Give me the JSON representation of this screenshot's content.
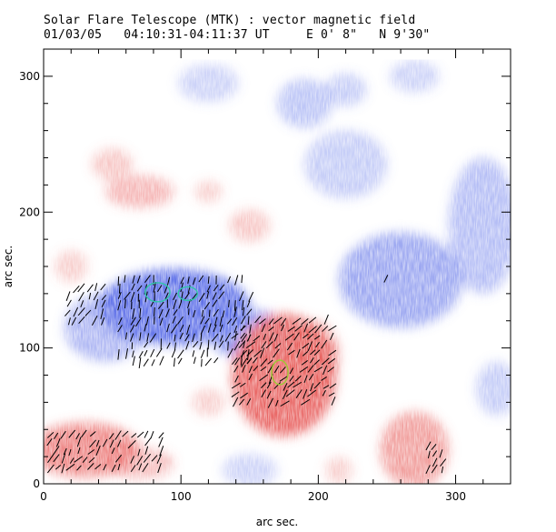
{
  "chart_data": {
    "type": "heatmap",
    "title": "Solar Flare Telescope (MTK) : vector magnetic field",
    "subtitle": "01/03/05   04:10:31-04:11:37 UT     E 0' 8\"   N 9'30\"",
    "xlabel": "arc sec.",
    "ylabel": "arc sec.",
    "xlim": [
      0,
      340
    ],
    "ylim": [
      0,
      320
    ],
    "xticks": [
      0,
      100,
      200,
      300
    ],
    "yticks": [
      0,
      100,
      200,
      300
    ],
    "legend": "none",
    "colors": {
      "positive_polarity": "#e8605e",
      "negative_polarity": "#5b6ee8",
      "contour": "#2fc6a8",
      "contour_alt": "#9acd32",
      "vectors": "#000000",
      "background": "#ffffff"
    },
    "regions": [
      {
        "polarity": "negative",
        "cx": 95,
        "cy": 130,
        "rx": 55,
        "ry": 28,
        "strength": 0.95
      },
      {
        "polarity": "negative",
        "cx": 150,
        "cy": 110,
        "rx": 30,
        "ry": 18,
        "strength": 0.7
      },
      {
        "polarity": "negative",
        "cx": 45,
        "cy": 115,
        "rx": 30,
        "ry": 25,
        "strength": 0.5
      },
      {
        "polarity": "negative",
        "cx": 260,
        "cy": 150,
        "rx": 45,
        "ry": 35,
        "strength": 0.6
      },
      {
        "polarity": "negative",
        "cx": 320,
        "cy": 190,
        "rx": 25,
        "ry": 50,
        "strength": 0.45
      },
      {
        "polarity": "negative",
        "cx": 220,
        "cy": 235,
        "rx": 30,
        "ry": 25,
        "strength": 0.35
      },
      {
        "polarity": "negative",
        "cx": 190,
        "cy": 280,
        "rx": 20,
        "ry": 18,
        "strength": 0.4
      },
      {
        "polarity": "negative",
        "cx": 220,
        "cy": 290,
        "rx": 15,
        "ry": 12,
        "strength": 0.35
      },
      {
        "polarity": "negative",
        "cx": 120,
        "cy": 295,
        "rx": 22,
        "ry": 14,
        "strength": 0.3
      },
      {
        "polarity": "negative",
        "cx": 270,
        "cy": 300,
        "rx": 18,
        "ry": 12,
        "strength": 0.3
      },
      {
        "polarity": "negative",
        "cx": 330,
        "cy": 70,
        "rx": 15,
        "ry": 20,
        "strength": 0.35
      },
      {
        "polarity": "negative",
        "cx": 150,
        "cy": 10,
        "rx": 20,
        "ry": 12,
        "strength": 0.3
      },
      {
        "polarity": "positive",
        "cx": 175,
        "cy": 80,
        "rx": 38,
        "ry": 45,
        "strength": 0.95
      },
      {
        "polarity": "positive",
        "cx": 195,
        "cy": 95,
        "rx": 20,
        "ry": 25,
        "strength": 0.6
      },
      {
        "polarity": "positive",
        "cx": 30,
        "cy": 25,
        "rx": 40,
        "ry": 20,
        "strength": 0.75
      },
      {
        "polarity": "positive",
        "cx": 70,
        "cy": 15,
        "rx": 25,
        "ry": 12,
        "strength": 0.4
      },
      {
        "polarity": "positive",
        "cx": 270,
        "cy": 25,
        "rx": 25,
        "ry": 28,
        "strength": 0.6
      },
      {
        "polarity": "positive",
        "cx": 70,
        "cy": 215,
        "rx": 25,
        "ry": 12,
        "strength": 0.45
      },
      {
        "polarity": "positive",
        "cx": 50,
        "cy": 235,
        "rx": 15,
        "ry": 12,
        "strength": 0.35
      },
      {
        "polarity": "positive",
        "cx": 150,
        "cy": 190,
        "rx": 15,
        "ry": 12,
        "strength": 0.35
      },
      {
        "polarity": "positive",
        "cx": 120,
        "cy": 215,
        "rx": 10,
        "ry": 8,
        "strength": 0.3
      },
      {
        "polarity": "positive",
        "cx": 120,
        "cy": 60,
        "rx": 12,
        "ry": 10,
        "strength": 0.3
      },
      {
        "polarity": "positive",
        "cx": 20,
        "cy": 160,
        "rx": 12,
        "ry": 12,
        "strength": 0.3
      },
      {
        "polarity": "positive",
        "cx": 215,
        "cy": 10,
        "rx": 10,
        "ry": 10,
        "strength": 0.3
      }
    ],
    "vector_clusters": [
      {
        "x0": 18,
        "x1": 45,
        "y0": 120,
        "y1": 145,
        "angle": 30
      },
      {
        "x0": 55,
        "x1": 150,
        "y0": 90,
        "y1": 150,
        "angle": 20
      },
      {
        "x0": 140,
        "x1": 210,
        "y0": 60,
        "y1": 120,
        "angle": 40
      },
      {
        "x0": 5,
        "x1": 85,
        "y0": 12,
        "y1": 40,
        "angle": 35
      },
      {
        "x0": 280,
        "x1": 290,
        "y0": 10,
        "y1": 30,
        "angle": 30
      },
      {
        "x0": 250,
        "x1": 255,
        "y0": 150,
        "y1": 152,
        "angle": 20
      }
    ],
    "contours": [
      {
        "cx": 83,
        "cy": 141,
        "rx": 9,
        "ry": 7,
        "color_key": "contour"
      },
      {
        "cx": 105,
        "cy": 140,
        "rx": 7,
        "ry": 5,
        "color_key": "contour"
      },
      {
        "cx": 172,
        "cy": 82,
        "rx": 6,
        "ry": 9,
        "color_key": "contour_alt"
      }
    ]
  }
}
